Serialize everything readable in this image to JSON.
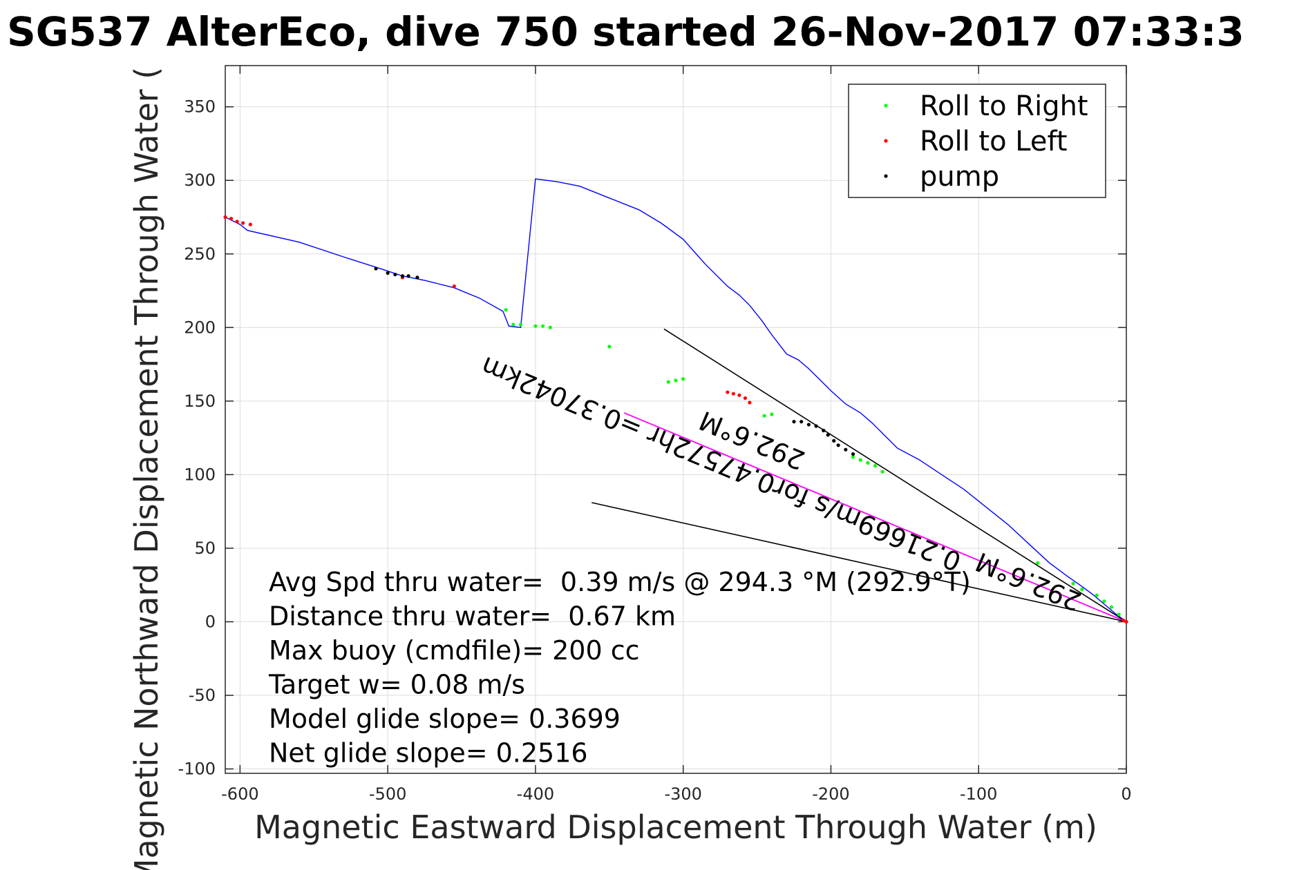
{
  "chart_data": {
    "type": "line",
    "title": "SG537 AlterEco, dive 750 started 26-Nov-2017 07:33:3",
    "xlabel": "Magnetic Eastward Displacement Through Water (m)",
    "ylabel": "Magnetic Northward Displacement Through Water (",
    "xlim": [
      -610,
      0
    ],
    "ylim": [
      -103,
      378
    ],
    "xticks": [
      -600,
      -500,
      -400,
      -300,
      -200,
      -100,
      0
    ],
    "xtick_labels": [
      "-600",
      "-500",
      "-400",
      "-300",
      "-200",
      "-100",
      "0"
    ],
    "yticks": [
      -100,
      -50,
      0,
      50,
      100,
      150,
      200,
      250,
      300,
      350
    ],
    "ytick_labels": [
      "-100",
      "-50",
      "0",
      "50",
      "100",
      "150",
      "200",
      "250",
      "300",
      "350"
    ],
    "grid": true,
    "legend_position": "top-right",
    "colors": {
      "track": "#0000ff",
      "roll_right": "#00ff00",
      "roll_left": "#ff0000",
      "pump": "#000000",
      "mean": "#ff00ff",
      "bounds": "#000000"
    },
    "series": [
      {
        "name": "",
        "kind": "track",
        "x": [
          0,
          -8,
          -15,
          -22,
          -30,
          -40,
          -52,
          -65,
          -80,
          -95,
          -110,
          -125,
          -140,
          -155,
          -165,
          -172,
          -180,
          -190,
          -200,
          -208,
          -215,
          -222,
          -230,
          -240,
          -247,
          -255,
          -262,
          -270,
          -285,
          -300,
          -315,
          -330,
          -350,
          -370,
          -385,
          -400,
          -410,
          -418,
          -422,
          -438,
          -455,
          -475,
          -490,
          -505,
          -530,
          -560,
          -595,
          -600,
          -606,
          -610
        ],
        "y": [
          0,
          6,
          12,
          18,
          24,
          31,
          40,
          52,
          66,
          78,
          90,
          100,
          110,
          118,
          128,
          135,
          142,
          148,
          157,
          165,
          172,
          178,
          182,
          195,
          205,
          215,
          222,
          228,
          243,
          260,
          271,
          280,
          288,
          296,
          299,
          301,
          200,
          201,
          211,
          220,
          227,
          232,
          235,
          240,
          248,
          258,
          266,
          270,
          273,
          275
        ]
      },
      {
        "name": "Roll to Right",
        "kind": "markers",
        "x": [
          -5,
          -10,
          -15,
          -20,
          -30,
          -36,
          -60,
          -165,
          -170,
          -175,
          -180,
          -185,
          -240,
          -245,
          -300,
          -305,
          -310,
          -350,
          -390,
          -395,
          -400,
          -410,
          -415,
          -420
        ],
        "y": [
          5,
          10,
          14,
          18,
          22,
          26,
          40,
          102,
          106,
          108,
          110,
          112,
          141,
          140,
          165,
          164,
          163,
          187,
          200,
          201,
          201,
          202,
          202,
          212
        ]
      },
      {
        "name": "Roll to Left",
        "kind": "markers",
        "x": [
          0,
          -2,
          -255,
          -258,
          -262,
          -266,
          -270,
          -455,
          -490,
          -593,
          -598,
          -602,
          -606,
          -610
        ],
        "y": [
          0,
          1,
          149,
          152,
          154,
          155,
          156,
          228,
          234,
          270,
          271,
          272,
          274,
          275
        ]
      },
      {
        "name": "pump",
        "kind": "markers",
        "x": [
          -185,
          -190,
          -195,
          -198,
          -202,
          -205,
          -210,
          -215,
          -220,
          -225,
          -480,
          -486,
          -490,
          -495,
          -500,
          -508
        ],
        "y": [
          114,
          117,
          120,
          123,
          127,
          130,
          133,
          134,
          136,
          136,
          234,
          235,
          235,
          236,
          237,
          240
        ]
      },
      {
        "name": "",
        "kind": "mean-line",
        "x": [
          0,
          -340
        ],
        "y": [
          0,
          142
        ]
      },
      {
        "name": "",
        "kind": "bound-line",
        "x": [
          0,
          -313
        ],
        "y": [
          0,
          199
        ]
      },
      {
        "name": "",
        "kind": "bound-line",
        "x": [
          0,
          -362
        ],
        "y": [
          0,
          81
        ]
      }
    ],
    "rotated_labels": [
      {
        "text": "292.6°M",
        "x": -251,
        "y": 129,
        "angle": 202.6
      },
      {
        "text": "0.21669m/s for0.47572hr =0.37042km",
        "x": -272,
        "y": 113,
        "angle": 202.6
      },
      {
        "text": "292.6°M",
        "x": -64,
        "y": 33,
        "angle": 202.6
      }
    ],
    "annotations": [
      "Avg Spd thru water=  0.39 m/s @ 294.3 °M (292.9°T)",
      "Distance thru water=  0.67 km",
      "Max buoy (cmdfile)= 200 cc",
      "Target w= 0.08 m/s",
      "Model glide slope= 0.3699",
      "Net glide slope= 0.2516"
    ]
  }
}
